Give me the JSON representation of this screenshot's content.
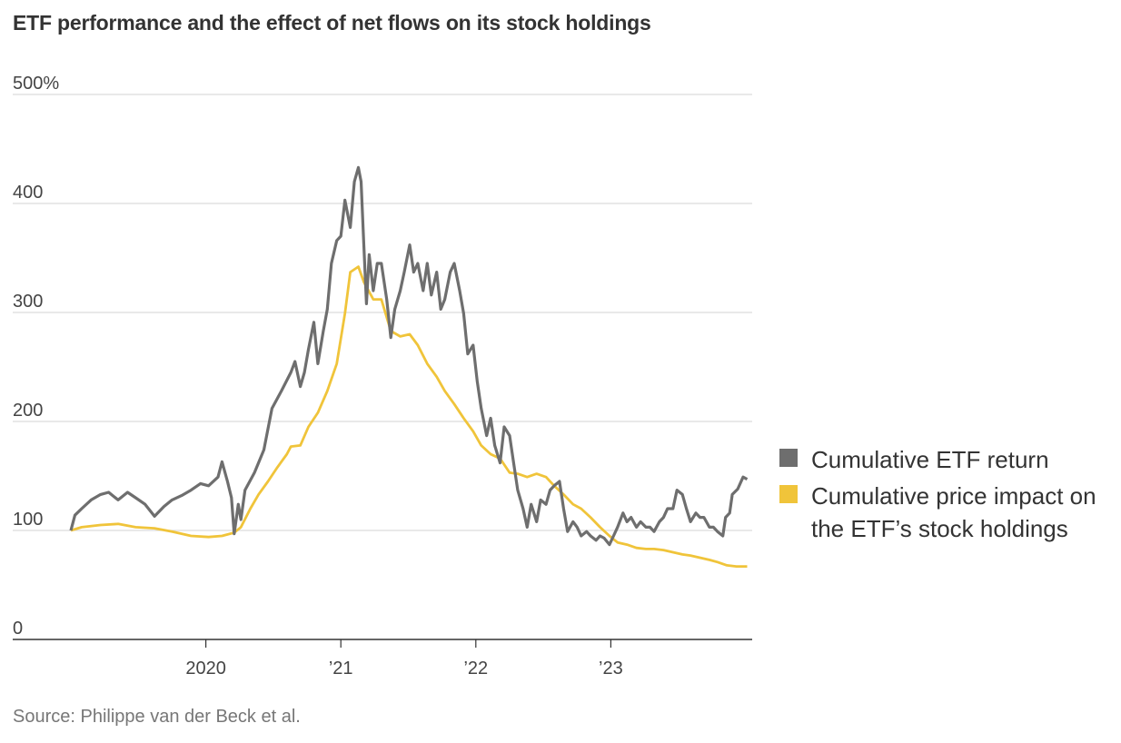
{
  "chart_data": {
    "type": "line",
    "title": "ETF performance and the effect of net flows on its stock holdings",
    "source": "Source: Philippe van der Beck et al.",
    "xlabel": "",
    "ylabel": "",
    "xlim": [
      2019.0,
      2024.0
    ],
    "ylim": [
      0,
      500
    ],
    "grid": true,
    "legend_position": "right",
    "y_ticks": [
      {
        "value": 0,
        "label": "0"
      },
      {
        "value": 100,
        "label": "100"
      },
      {
        "value": 200,
        "label": "200"
      },
      {
        "value": 300,
        "label": "300"
      },
      {
        "value": 400,
        "label": "400"
      },
      {
        "value": 500,
        "label": "500%"
      }
    ],
    "x_ticks": [
      {
        "value": 2020,
        "label": "2020"
      },
      {
        "value": 2021,
        "label": "’21"
      },
      {
        "value": 2022,
        "label": "’22"
      },
      {
        "value": 2023,
        "label": "’23"
      }
    ],
    "series": [
      {
        "name": "Cumulative ETF return",
        "color": "#6e6e6e",
        "points": [
          [
            2019.0,
            100
          ],
          [
            2019.03,
            114
          ],
          [
            2019.08,
            120
          ],
          [
            2019.15,
            128
          ],
          [
            2019.22,
            133
          ],
          [
            2019.28,
            135
          ],
          [
            2019.35,
            128
          ],
          [
            2019.42,
            135
          ],
          [
            2019.48,
            130
          ],
          [
            2019.55,
            124
          ],
          [
            2019.62,
            113
          ],
          [
            2019.69,
            122
          ],
          [
            2019.75,
            128
          ],
          [
            2019.82,
            132
          ],
          [
            2019.89,
            137
          ],
          [
            2019.96,
            143
          ],
          [
            2020.02,
            141
          ],
          [
            2020.09,
            149
          ],
          [
            2020.12,
            163
          ],
          [
            2020.16,
            145
          ],
          [
            2020.19,
            130
          ],
          [
            2020.21,
            97
          ],
          [
            2020.24,
            124
          ],
          [
            2020.26,
            110
          ],
          [
            2020.29,
            137
          ],
          [
            2020.36,
            153
          ],
          [
            2020.43,
            174
          ],
          [
            2020.49,
            212
          ],
          [
            2020.56,
            228
          ],
          [
            2020.63,
            245
          ],
          [
            2020.66,
            255
          ],
          [
            2020.7,
            232
          ],
          [
            2020.73,
            245
          ],
          [
            2020.76,
            266
          ],
          [
            2020.8,
            291
          ],
          [
            2020.83,
            253
          ],
          [
            2020.87,
            283
          ],
          [
            2020.9,
            303
          ],
          [
            2020.93,
            345
          ],
          [
            2020.97,
            366
          ],
          [
            2021.0,
            370
          ],
          [
            2021.03,
            403
          ],
          [
            2021.07,
            378
          ],
          [
            2021.1,
            420
          ],
          [
            2021.13,
            433
          ],
          [
            2021.15,
            420
          ],
          [
            2021.17,
            362
          ],
          [
            2021.19,
            308
          ],
          [
            2021.21,
            353
          ],
          [
            2021.24,
            320
          ],
          [
            2021.27,
            345
          ],
          [
            2021.3,
            345
          ],
          [
            2021.34,
            312
          ],
          [
            2021.37,
            277
          ],
          [
            2021.4,
            303
          ],
          [
            2021.44,
            320
          ],
          [
            2021.47,
            337
          ],
          [
            2021.51,
            362
          ],
          [
            2021.54,
            337
          ],
          [
            2021.57,
            345
          ],
          [
            2021.61,
            320
          ],
          [
            2021.64,
            345
          ],
          [
            2021.67,
            316
          ],
          [
            2021.71,
            337
          ],
          [
            2021.74,
            303
          ],
          [
            2021.77,
            312
          ],
          [
            2021.81,
            337
          ],
          [
            2021.84,
            345
          ],
          [
            2021.88,
            320
          ],
          [
            2021.91,
            299
          ],
          [
            2021.94,
            262
          ],
          [
            2021.98,
            270
          ],
          [
            2022.01,
            237
          ],
          [
            2022.04,
            212
          ],
          [
            2022.08,
            187
          ],
          [
            2022.11,
            203
          ],
          [
            2022.14,
            178
          ],
          [
            2022.18,
            162
          ],
          [
            2022.21,
            195
          ],
          [
            2022.25,
            187
          ],
          [
            2022.28,
            162
          ],
          [
            2022.31,
            137
          ],
          [
            2022.35,
            120
          ],
          [
            2022.38,
            103
          ],
          [
            2022.41,
            124
          ],
          [
            2022.45,
            108
          ],
          [
            2022.48,
            128
          ],
          [
            2022.52,
            124
          ],
          [
            2022.55,
            137
          ],
          [
            2022.58,
            141
          ],
          [
            2022.62,
            145
          ],
          [
            2022.65,
            120
          ],
          [
            2022.68,
            99
          ],
          [
            2022.72,
            108
          ],
          [
            2022.75,
            103
          ],
          [
            2022.78,
            95
          ],
          [
            2022.82,
            99
          ],
          [
            2022.85,
            95
          ],
          [
            2022.89,
            91
          ],
          [
            2022.92,
            95
          ],
          [
            2022.95,
            93
          ],
          [
            2022.99,
            87
          ],
          [
            2023.02,
            95
          ],
          [
            2023.05,
            103
          ],
          [
            2023.09,
            116
          ],
          [
            2023.12,
            108
          ],
          [
            2023.15,
            112
          ],
          [
            2023.19,
            103
          ],
          [
            2023.22,
            108
          ],
          [
            2023.26,
            103
          ],
          [
            2023.29,
            103
          ],
          [
            2023.32,
            99
          ],
          [
            2023.36,
            108
          ],
          [
            2023.39,
            112
          ],
          [
            2023.42,
            120
          ],
          [
            2023.46,
            120
          ],
          [
            2023.49,
            137
          ],
          [
            2023.53,
            133
          ],
          [
            2023.56,
            120
          ],
          [
            2023.59,
            108
          ],
          [
            2023.63,
            116
          ],
          [
            2023.66,
            112
          ],
          [
            2023.69,
            112
          ],
          [
            2023.73,
            103
          ],
          [
            2023.76,
            103
          ],
          [
            2023.79,
            99
          ],
          [
            2023.83,
            95
          ],
          [
            2023.85,
            112
          ],
          [
            2023.88,
            116
          ],
          [
            2023.9,
            133
          ],
          [
            2023.94,
            138
          ],
          [
            2023.98,
            149
          ],
          [
            2024.01,
            147
          ]
        ]
      },
      {
        "name": "Cumulative price impact on the ETF’s stock holdings",
        "color": "#f0c43a",
        "points": [
          [
            2019.0,
            100
          ],
          [
            2019.08,
            103
          ],
          [
            2019.22,
            105
          ],
          [
            2019.35,
            106
          ],
          [
            2019.48,
            103
          ],
          [
            2019.62,
            102
          ],
          [
            2019.75,
            99
          ],
          [
            2019.89,
            95
          ],
          [
            2020.02,
            94
          ],
          [
            2020.12,
            95
          ],
          [
            2020.21,
            98
          ],
          [
            2020.26,
            103
          ],
          [
            2020.33,
            120
          ],
          [
            2020.39,
            133
          ],
          [
            2020.46,
            145
          ],
          [
            2020.53,
            158
          ],
          [
            2020.6,
            170
          ],
          [
            2020.63,
            177
          ],
          [
            2020.7,
            178
          ],
          [
            2020.76,
            195
          ],
          [
            2020.83,
            208
          ],
          [
            2020.9,
            228
          ],
          [
            2020.97,
            253
          ],
          [
            2021.03,
            299
          ],
          [
            2021.07,
            337
          ],
          [
            2021.13,
            342
          ],
          [
            2021.17,
            328
          ],
          [
            2021.24,
            312
          ],
          [
            2021.3,
            312
          ],
          [
            2021.37,
            283
          ],
          [
            2021.44,
            278
          ],
          [
            2021.51,
            280
          ],
          [
            2021.57,
            270
          ],
          [
            2021.64,
            253
          ],
          [
            2021.71,
            241
          ],
          [
            2021.77,
            228
          ],
          [
            2021.84,
            216
          ],
          [
            2021.91,
            203
          ],
          [
            2021.98,
            191
          ],
          [
            2022.04,
            178
          ],
          [
            2022.11,
            170
          ],
          [
            2022.18,
            166
          ],
          [
            2022.25,
            153
          ],
          [
            2022.31,
            152
          ],
          [
            2022.38,
            149
          ],
          [
            2022.45,
            152
          ],
          [
            2022.52,
            149
          ],
          [
            2022.58,
            141
          ],
          [
            2022.65,
            133
          ],
          [
            2022.72,
            124
          ],
          [
            2022.78,
            120
          ],
          [
            2022.85,
            112
          ],
          [
            2022.92,
            103
          ],
          [
            2022.99,
            95
          ],
          [
            2023.05,
            89
          ],
          [
            2023.12,
            87
          ],
          [
            2023.19,
            84
          ],
          [
            2023.26,
            83
          ],
          [
            2023.32,
            83
          ],
          [
            2023.39,
            82
          ],
          [
            2023.46,
            80
          ],
          [
            2023.53,
            78
          ],
          [
            2023.59,
            77
          ],
          [
            2023.66,
            75
          ],
          [
            2023.73,
            73
          ],
          [
            2023.79,
            71
          ],
          [
            2023.86,
            68
          ],
          [
            2023.93,
            67
          ],
          [
            2024.01,
            67
          ]
        ]
      }
    ],
    "legend": [
      {
        "label": "Cumulative ETF return",
        "color": "#6e6e6e"
      },
      {
        "label": "Cumulative price impact on the ETF’s stock holdings",
        "color": "#f0c43a"
      }
    ]
  }
}
